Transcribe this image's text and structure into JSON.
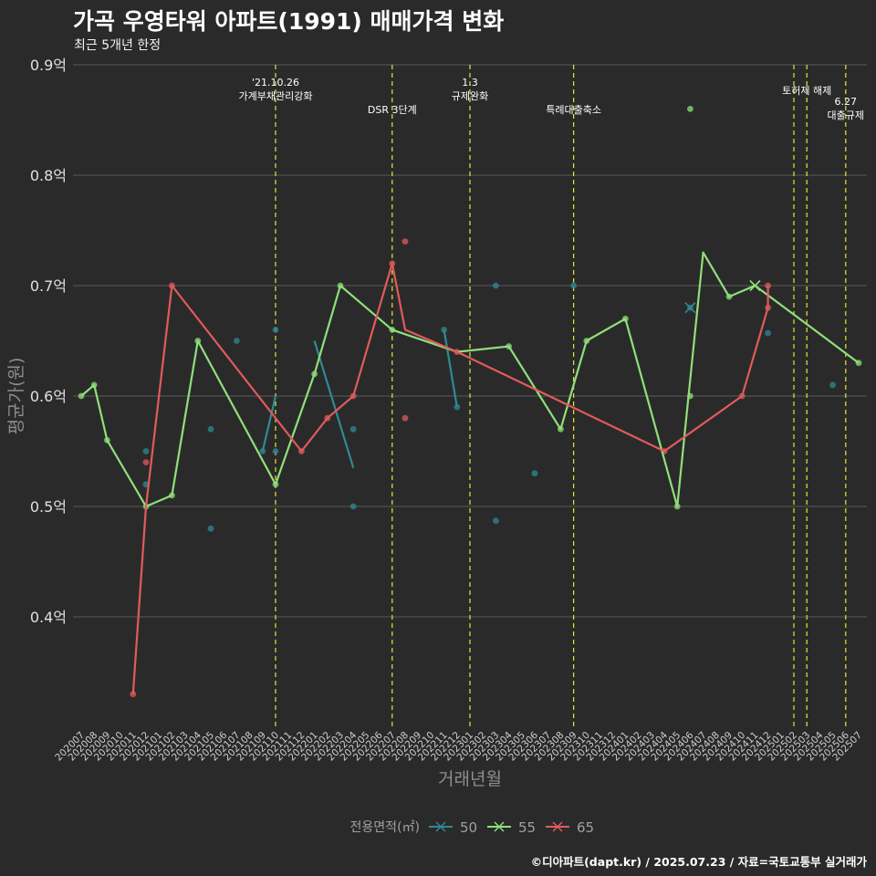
{
  "title": "가곡 우영타워 아파트(1991) 매매가격 변화",
  "subtitle": "최근 5개년 한정",
  "caption": "©디아파트(dapt.kr) / 2025.07.23 / 자료=국토교통부 실거래가",
  "colors": {
    "background": "#2b2a2b",
    "grid": "#5a5a5a",
    "event_line": "#e6e62e",
    "s50": "#2f8a93",
    "s55": "#8fe07a",
    "s65": "#e15b5b"
  },
  "chart_data": {
    "type": "line",
    "title": "가곡 우영타워 아파트(1991) 매매가격 변화",
    "subtitle": "최근 5개년 한정",
    "xlabel": "거래년월",
    "ylabel": "평균가(원)",
    "legend_title": "전용면적(㎡)",
    "legend_position": "bottom",
    "grid": true,
    "ylim": [
      0.3,
      0.9
    ],
    "yticks": [
      0.4,
      0.5,
      0.6,
      0.7,
      0.8,
      0.9
    ],
    "ytick_labels": [
      "0.4억",
      "0.5억",
      "0.6억",
      "0.7억",
      "0.8억",
      "0.9억"
    ],
    "x_categories": [
      "202007",
      "202008",
      "202009",
      "202010",
      "202011",
      "202012",
      "202101",
      "202102",
      "202103",
      "202104",
      "202105",
      "202106",
      "202107",
      "202108",
      "202109",
      "202110",
      "202111",
      "202112",
      "202201",
      "202202",
      "202203",
      "202204",
      "202205",
      "202206",
      "202207",
      "202208",
      "202209",
      "202210",
      "202211",
      "202212",
      "202301",
      "202302",
      "202303",
      "202304",
      "202305",
      "202306",
      "202307",
      "202308",
      "202309",
      "202310",
      "202311",
      "202312",
      "202401",
      "202402",
      "202403",
      "202404",
      "202405",
      "202406",
      "202407",
      "202408",
      "202409",
      "202410",
      "202411",
      "202412",
      "202501",
      "202502",
      "202503",
      "202504",
      "202505",
      "202506",
      "202507"
    ],
    "events": [
      {
        "x": "202110",
        "label_lines": [
          "'21.10.26",
          "가계부채관리강화"
        ]
      },
      {
        "x": "202207",
        "label_lines": [
          "DSR 3단계"
        ]
      },
      {
        "x": "202301",
        "label_lines": [
          "1.3",
          "규제완화"
        ]
      },
      {
        "x": "202309",
        "label_lines": [
          "특례대출축소"
        ]
      },
      {
        "x": "202502",
        "label_lines": []
      },
      {
        "x": "202503",
        "label_lines": [
          "토허제 해제"
        ]
      },
      {
        "x": "202506",
        "label_lines": [
          "6.27",
          "대출규제"
        ]
      }
    ],
    "series": [
      {
        "name": "50",
        "color": "#2f8a93",
        "line": [
          [
            "202109",
            0.55
          ],
          [
            "202110",
            0.6
          ],
          null,
          [
            "202201",
            0.65
          ],
          [
            "202204",
            0.535
          ],
          null,
          [
            "202211",
            0.66
          ],
          [
            "202212",
            0.59
          ]
        ],
        "points": [
          [
            "202012",
            0.55
          ],
          [
            "202012",
            0.52
          ],
          [
            "202105",
            0.57
          ],
          [
            "202105",
            0.48
          ],
          [
            "202107",
            0.65
          ],
          [
            "202109",
            0.55
          ],
          [
            "202110",
            0.66
          ],
          [
            "202110",
            0.55
          ],
          [
            "202204",
            0.57
          ],
          [
            "202204",
            0.5
          ],
          [
            "202211",
            0.66
          ],
          [
            "202212",
            0.59
          ],
          [
            "202303",
            0.7
          ],
          [
            "202303",
            0.487
          ],
          [
            "202306",
            0.53
          ],
          [
            "202309",
            0.7
          ],
          [
            "202406",
            0.68
          ],
          [
            "202412",
            0.657
          ],
          [
            "202505",
            0.61
          ]
        ],
        "cross": [
          [
            "202406",
            0.68
          ]
        ]
      },
      {
        "name": "55",
        "color": "#8fe07a",
        "line": [
          [
            "202007",
            0.6
          ],
          [
            "202008",
            0.61
          ],
          [
            "202009",
            0.56
          ],
          [
            "202012",
            0.5
          ],
          [
            "202102",
            0.51
          ],
          [
            "202104",
            0.65
          ],
          [
            "202110",
            0.52
          ],
          [
            "202201",
            0.62
          ],
          [
            "202203",
            0.7
          ],
          [
            "202207",
            0.66
          ],
          [
            "202212",
            0.64
          ],
          [
            "202304",
            0.645
          ],
          [
            "202308",
            0.57
          ],
          [
            "202310",
            0.65
          ],
          [
            "202401",
            0.67
          ],
          [
            "202405",
            0.5
          ],
          [
            "202407",
            0.73
          ],
          [
            "202409",
            0.69
          ],
          [
            "202411",
            0.7
          ],
          [
            "202507",
            0.63
          ]
        ],
        "points": [
          [
            "202007",
            0.6
          ],
          [
            "202008",
            0.61
          ],
          [
            "202009",
            0.56
          ],
          [
            "202012",
            0.5
          ],
          [
            "202102",
            0.51
          ],
          [
            "202104",
            0.65
          ],
          [
            "202110",
            0.52
          ],
          [
            "202201",
            0.62
          ],
          [
            "202203",
            0.7
          ],
          [
            "202207",
            0.66
          ],
          [
            "202304",
            0.645
          ],
          [
            "202308",
            0.57
          ],
          [
            "202310",
            0.65
          ],
          [
            "202401",
            0.67
          ],
          [
            "202405",
            0.5
          ],
          [
            "202406",
            0.86
          ],
          [
            "202406",
            0.6
          ],
          [
            "202409",
            0.69
          ],
          [
            "202507",
            0.63
          ]
        ],
        "cross": [
          [
            "202411",
            0.7
          ]
        ]
      },
      {
        "name": "65",
        "color": "#e15b5b",
        "line": [
          [
            "202011",
            0.33
          ],
          [
            "202012",
            0.5
          ],
          [
            "202102",
            0.7
          ],
          [
            "202112",
            0.55
          ],
          [
            "202202",
            0.58
          ],
          [
            "202204",
            0.6
          ],
          [
            "202207",
            0.72
          ],
          [
            "202208",
            0.66
          ],
          [
            "202212",
            0.64
          ],
          [
            "202404",
            0.55
          ],
          [
            "202410",
            0.6
          ],
          [
            "202412",
            0.68
          ],
          [
            "202412",
            0.7
          ]
        ],
        "points": [
          [
            "202011",
            0.33
          ],
          [
            "202012",
            0.54
          ],
          [
            "202102",
            0.7
          ],
          [
            "202112",
            0.55
          ],
          [
            "202202",
            0.58
          ],
          [
            "202204",
            0.6
          ],
          [
            "202207",
            0.72
          ],
          [
            "202208",
            0.74
          ],
          [
            "202208",
            0.58
          ],
          [
            "202212",
            0.64
          ],
          [
            "202404",
            0.55
          ],
          [
            "202410",
            0.6
          ],
          [
            "202412",
            0.68
          ],
          [
            "202412",
            0.7
          ]
        ],
        "cross": []
      }
    ]
  }
}
